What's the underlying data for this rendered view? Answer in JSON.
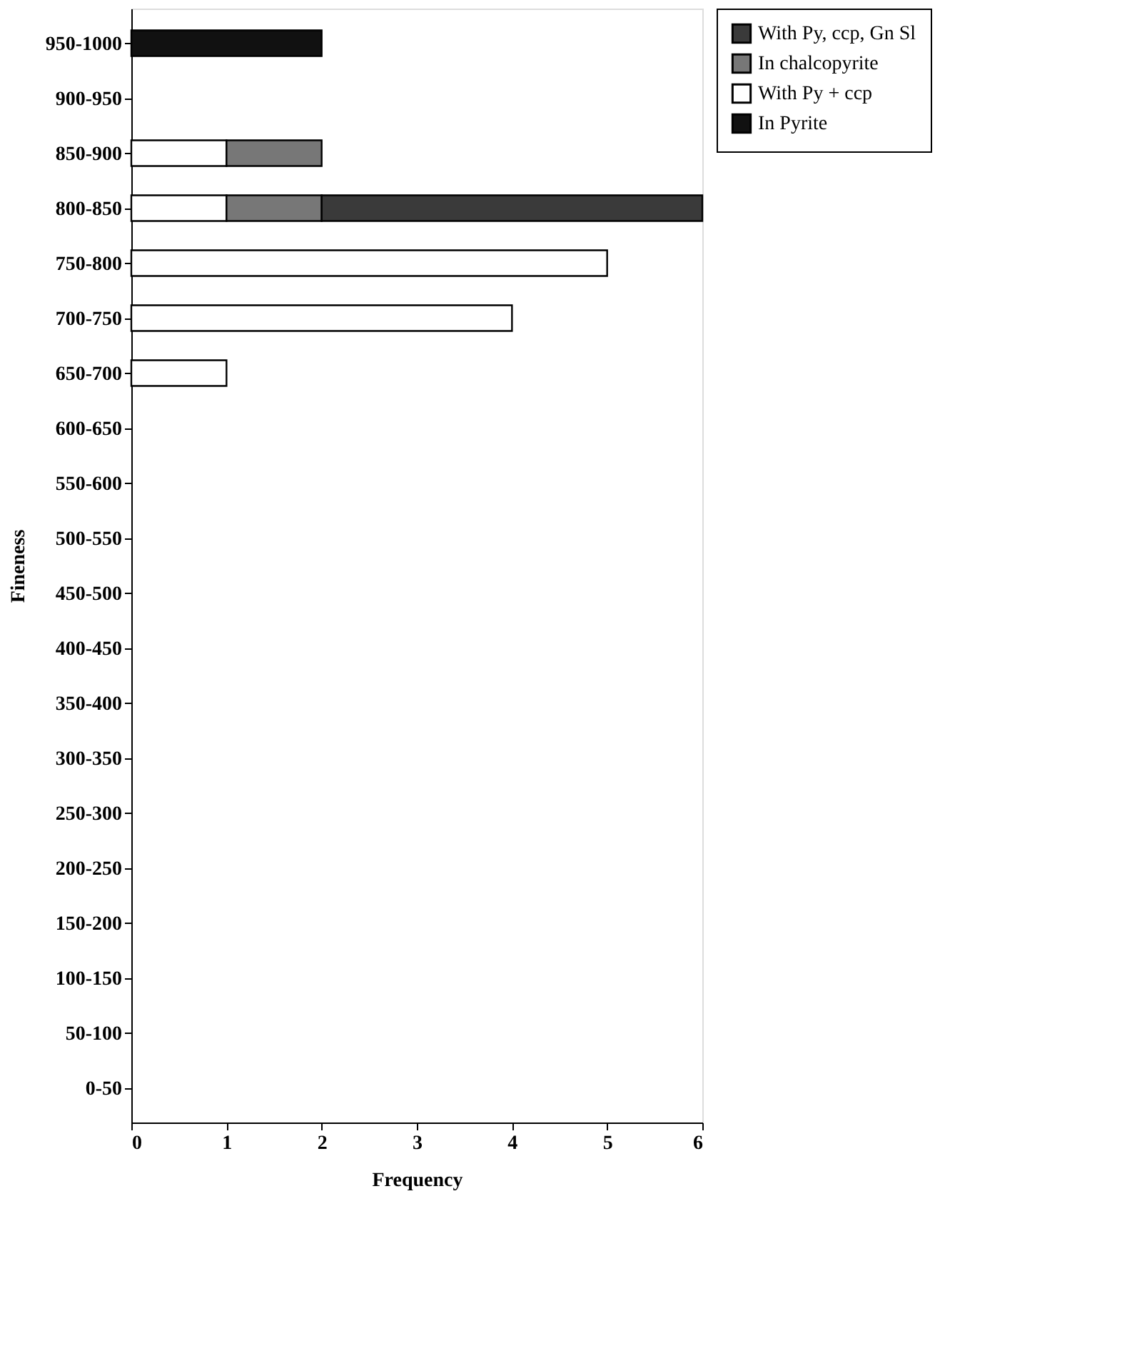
{
  "chart_data": {
    "type": "bar",
    "orientation": "horizontal",
    "stacked": true,
    "xlabel": "Frequency",
    "ylabel": "Fineness",
    "categories": [
      "950-1000",
      "900-950",
      "850-900",
      "800-850",
      "750-800",
      "700-750",
      "650-700",
      "600-650",
      "550-600",
      "500-550",
      "450-500",
      "400-450",
      "350-400",
      "300-350",
      "250-300",
      "200-250",
      "150-200",
      "100-150",
      "50-100",
      "0-50"
    ],
    "series": [
      {
        "name": "In Pyrite",
        "color": "#111111",
        "values": [
          2,
          null,
          null,
          null,
          null,
          null,
          null,
          null,
          null,
          null,
          null,
          null,
          null,
          null,
          null,
          null,
          null,
          null,
          null,
          null
        ]
      },
      {
        "name": "With Py + ccp",
        "color": "#ffffff",
        "values": [
          null,
          null,
          1,
          1,
          5,
          4,
          1,
          null,
          null,
          null,
          null,
          null,
          null,
          null,
          null,
          null,
          null,
          null,
          null,
          null
        ]
      },
      {
        "name": "In chalcopyrite",
        "color": "#777777",
        "values": [
          null,
          null,
          1,
          1,
          null,
          null,
          null,
          null,
          null,
          null,
          null,
          null,
          null,
          null,
          null,
          null,
          null,
          null,
          null,
          null
        ]
      },
      {
        "name": "With Py, ccp, Gn Sl",
        "color": "#3a3a3a",
        "values": [
          null,
          null,
          null,
          4,
          null,
          null,
          null,
          null,
          null,
          null,
          null,
          null,
          null,
          null,
          null,
          null,
          null,
          null,
          null,
          null
        ]
      }
    ],
    "xlim": [
      0,
      6
    ],
    "xticks": [
      0,
      1,
      2,
      3,
      4,
      5,
      6
    ],
    "grid": false,
    "legend": "right"
  }
}
